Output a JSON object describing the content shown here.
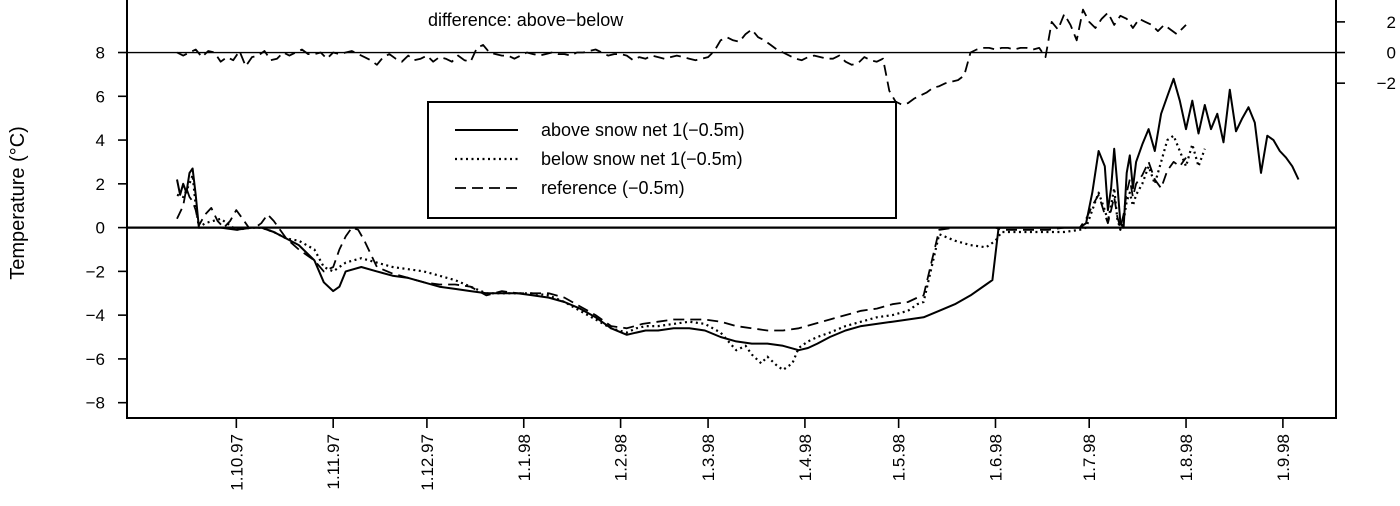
{
  "chart_data": {
    "type": "line",
    "ylabel": "Temperature (°C)",
    "ylim": [
      -8.7,
      10.4
    ],
    "y_ticks": [
      "8",
      "6",
      "4",
      "2",
      "0",
      "−2",
      "−4",
      "−6",
      "−8"
    ],
    "y_tick_values": [
      8,
      6,
      4,
      2,
      0,
      -2,
      -4,
      -6,
      -8
    ],
    "x_ticks": [
      "1.10.97",
      "1.11.97",
      "1.12.97",
      "1.1.98",
      "1.2.98",
      "1.3.98",
      "1.4.98",
      "1.5.98",
      "1.6.98",
      "1.7.98",
      "1.8.98",
      "1.9.98"
    ],
    "x_tick_days": [
      0,
      31,
      61,
      92,
      123,
      151,
      182,
      212,
      243,
      273,
      304,
      335
    ],
    "x_range_days": [
      -35,
      352
    ],
    "inset": {
      "label": "difference: above−below",
      "baseline_on_main_axis": 8,
      "scale_per_unit": 0.7,
      "right_ticks": [
        "2",
        "0",
        "−2"
      ],
      "right_tick_values": [
        2,
        0,
        -2
      ]
    },
    "legend": {
      "placement": "top-center",
      "entries": [
        "above snow net 1(−0.5m)",
        "below snow net 1(−0.5m)",
        "reference (−0.5m)"
      ]
    },
    "series": [
      {
        "name": "above snow net 1(−0.5m)",
        "style": "solid",
        "x": [
          -19,
          -18,
          -17,
          -16,
          -15,
          -14,
          -13,
          -12,
          -10,
          -5,
          0,
          5,
          8,
          12,
          16,
          20,
          25,
          28,
          31,
          33,
          35,
          40,
          45,
          50,
          55,
          60,
          65,
          70,
          75,
          80,
          85,
          90,
          95,
          100,
          105,
          110,
          115,
          120,
          125,
          128,
          131,
          135,
          140,
          145,
          150,
          155,
          160,
          165,
          170,
          175,
          180,
          183,
          186,
          190,
          195,
          200,
          205,
          210,
          215,
          220,
          225,
          230,
          235,
          240,
          242,
          243,
          244,
          250,
          255,
          260,
          265,
          270,
          272,
          274,
          276,
          278,
          279,
          280,
          281,
          282,
          283,
          284,
          285,
          286,
          287,
          288,
          290,
          292,
          294,
          296,
          298,
          300,
          302,
          304,
          306,
          308,
          310,
          312,
          314,
          316,
          318,
          320,
          322,
          324,
          326,
          328,
          330,
          332,
          334,
          336,
          338,
          340
        ],
        "y": [
          2.2,
          1.5,
          2.0,
          1.6,
          2.5,
          2.7,
          1.5,
          0.0,
          0.0,
          0.0,
          -0.1,
          0.0,
          0.0,
          -0.2,
          -0.5,
          -0.8,
          -1.5,
          -2.5,
          -2.9,
          -2.7,
          -2.0,
          -1.8,
          -2.0,
          -2.2,
          -2.3,
          -2.5,
          -2.7,
          -2.8,
          -2.9,
          -3.0,
          -3.0,
          -3.0,
          -3.1,
          -3.2,
          -3.4,
          -3.7,
          -4.1,
          -4.6,
          -4.9,
          -4.8,
          -4.7,
          -4.7,
          -4.6,
          -4.6,
          -4.7,
          -5.0,
          -5.2,
          -5.3,
          -5.3,
          -5.4,
          -5.6,
          -5.5,
          -5.3,
          -5.0,
          -4.7,
          -4.5,
          -4.4,
          -4.3,
          -4.2,
          -4.1,
          -3.8,
          -3.5,
          -3.1,
          -2.6,
          -2.4,
          -1.2,
          0.0,
          0.0,
          0.0,
          0.0,
          0.0,
          0.0,
          0.2,
          1.6,
          3.5,
          2.8,
          0.8,
          1.8,
          3.6,
          2.0,
          0.2,
          0.0,
          2.5,
          3.3,
          1.8,
          3.0,
          3.8,
          4.5,
          3.5,
          5.2,
          6.0,
          6.8,
          5.8,
          4.5,
          5.8,
          4.3,
          5.6,
          4.5,
          5.2,
          3.9,
          6.3,
          4.4,
          5.0,
          5.5,
          4.8,
          2.5,
          4.2,
          4.0,
          3.5,
          3.2,
          2.8,
          2.2
        ]
      },
      {
        "name": "below snow net 1(−0.5m)",
        "style": "dotted",
        "x": [
          -19,
          -17,
          -15,
          -14,
          -13,
          -12,
          -10,
          -5,
          0,
          5,
          8,
          12,
          16,
          20,
          25,
          28,
          31,
          33,
          35,
          40,
          45,
          50,
          55,
          60,
          65,
          70,
          75,
          80,
          85,
          90,
          95,
          100,
          105,
          110,
          115,
          120,
          125,
          128,
          131,
          135,
          140,
          145,
          150,
          155,
          160,
          163,
          165,
          168,
          170,
          173,
          175,
          178,
          180,
          183,
          186,
          190,
          195,
          200,
          205,
          210,
          215,
          218,
          220,
          225,
          230,
          235,
          240,
          243,
          245,
          250,
          255,
          260,
          265,
          270,
          272,
          274,
          276,
          278,
          279,
          280,
          281,
          282,
          283,
          284,
          285,
          286,
          287,
          288,
          290,
          292,
          294,
          296,
          298,
          300,
          302,
          304,
          306,
          308,
          310
        ],
        "y": [
          1.5,
          1.4,
          2.0,
          2.4,
          1.0,
          0.0,
          0.2,
          0.4,
          -0.1,
          0.0,
          0.0,
          -0.2,
          -0.5,
          -0.6,
          -1.0,
          -1.8,
          -2.0,
          -1.8,
          -1.6,
          -1.4,
          -1.6,
          -1.8,
          -1.9,
          -2.0,
          -2.2,
          -2.4,
          -2.7,
          -3.0,
          -3.0,
          -3.0,
          -3.0,
          -3.1,
          -3.4,
          -3.8,
          -4.2,
          -4.6,
          -4.8,
          -4.6,
          -4.5,
          -4.5,
          -4.4,
          -4.3,
          -4.4,
          -4.8,
          -5.6,
          -5.4,
          -5.8,
          -6.2,
          -5.9,
          -6.3,
          -6.5,
          -6.2,
          -5.5,
          -5.2,
          -5.0,
          -4.8,
          -4.5,
          -4.3,
          -4.1,
          -4.0,
          -3.8,
          -3.5,
          -3.4,
          -0.3,
          -0.6,
          -0.8,
          -0.9,
          -0.6,
          -0.2,
          -0.2,
          -0.2,
          -0.2,
          -0.2,
          -0.1,
          0.0,
          0.8,
          1.6,
          0.8,
          0.3,
          1.0,
          1.8,
          0.4,
          -0.1,
          0.3,
          1.2,
          1.6,
          1.0,
          1.5,
          2.0,
          2.8,
          2.0,
          3.0,
          4.0,
          4.2,
          3.5,
          2.8,
          3.8,
          2.8,
          3.6
        ]
      },
      {
        "name": "reference (−0.5m)",
        "style": "dashed",
        "x": [
          -19,
          -17,
          -16,
          -15,
          -14,
          -13,
          -12,
          -10,
          -8,
          -6,
          -4,
          -2,
          0,
          2,
          4,
          6,
          8,
          10,
          12,
          16,
          20,
          25,
          28,
          31,
          33,
          35,
          37,
          39,
          41,
          45,
          50,
          55,
          60,
          65,
          70,
          75,
          80,
          85,
          90,
          95,
          100,
          105,
          110,
          115,
          120,
          125,
          130,
          135,
          140,
          145,
          150,
          155,
          160,
          165,
          170,
          175,
          180,
          185,
          190,
          195,
          200,
          205,
          210,
          215,
          218,
          220,
          225,
          230,
          235,
          240,
          243,
          245,
          250,
          255,
          260,
          265,
          270,
          272,
          274,
          276,
          278,
          279,
          280,
          281,
          282,
          283,
          284,
          285,
          286,
          287,
          288,
          290,
          292,
          294,
          296,
          298,
          300,
          302,
          304
        ],
        "y": [
          0.4,
          1.0,
          1.8,
          1.4,
          1.2,
          0.8,
          0.1,
          0.6,
          0.9,
          0.3,
          0.0,
          0.3,
          0.8,
          0.4,
          0.0,
          0.0,
          0.2,
          0.6,
          0.3,
          -0.5,
          -1.0,
          -1.5,
          -2.0,
          -1.8,
          -1.0,
          -0.4,
          0.0,
          -0.1,
          -0.6,
          -1.8,
          -2.1,
          -2.3,
          -2.5,
          -2.6,
          -2.6,
          -2.7,
          -3.1,
          -2.9,
          -3.0,
          -3.0,
          -3.0,
          -3.2,
          -3.6,
          -4.0,
          -4.5,
          -4.6,
          -4.4,
          -4.3,
          -4.2,
          -4.2,
          -4.2,
          -4.3,
          -4.5,
          -4.6,
          -4.7,
          -4.7,
          -4.6,
          -4.4,
          -4.2,
          -4.0,
          -3.8,
          -3.7,
          -3.5,
          -3.4,
          -3.2,
          -3.1,
          -0.1,
          0.0,
          0.0,
          0.0,
          0.0,
          -0.1,
          -0.1,
          -0.1,
          -0.1,
          0.0,
          0.0,
          0.4,
          1.0,
          1.5,
          0.6,
          0.2,
          0.8,
          1.4,
          0.5,
          0.0,
          0.6,
          1.6,
          2.2,
          1.4,
          2.0,
          2.4,
          3.0,
          2.2,
          1.8,
          2.6,
          3.0,
          2.8,
          3.2
        ]
      },
      {
        "name": "difference: above−below",
        "style": "dashed",
        "axis": "inset",
        "x": [
          -19,
          -17,
          -15,
          -13,
          -11,
          -9,
          -7,
          -5,
          -3,
          -1,
          1,
          3,
          5,
          7,
          9,
          11,
          13,
          15,
          17,
          19,
          21,
          23,
          25,
          27,
          29,
          31,
          33,
          35,
          37,
          39,
          41,
          43,
          45,
          47,
          49,
          51,
          53,
          55,
          57,
          59,
          61,
          63,
          65,
          67,
          69,
          71,
          73,
          75,
          77,
          79,
          81,
          83,
          85,
          87,
          89,
          91,
          93,
          95,
          97,
          99,
          101,
          103,
          105,
          107,
          109,
          111,
          113,
          115,
          117,
          119,
          121,
          123,
          125,
          127,
          129,
          131,
          133,
          135,
          137,
          139,
          141,
          143,
          145,
          147,
          149,
          151,
          153,
          155,
          157,
          159,
          161,
          163,
          165,
          167,
          169,
          171,
          173,
          175,
          177,
          179,
          181,
          183,
          185,
          187,
          189,
          191,
          193,
          195,
          197,
          199,
          201,
          203,
          205,
          207,
          209,
          211,
          213,
          215,
          217,
          219,
          221,
          223,
          225,
          227,
          229,
          231,
          233,
          235,
          237,
          239,
          241,
          243,
          245,
          247,
          249,
          251,
          253,
          255,
          257,
          259,
          261,
          263,
          265,
          267,
          269,
          271,
          273,
          275,
          277,
          279,
          281,
          283,
          285,
          287,
          289,
          291,
          293,
          295,
          297,
          299,
          301,
          303,
          304
        ],
        "y": [
          0.0,
          -0.2,
          0.0,
          0.2,
          -0.3,
          0.1,
          0.0,
          -0.6,
          -0.3,
          -0.5,
          0.1,
          -0.9,
          -0.3,
          -0.2,
          0.1,
          -0.5,
          -0.4,
          0.0,
          -0.2,
          0.0,
          0.2,
          -0.1,
          -0.1,
          0.0,
          -0.4,
          0.0,
          -0.1,
          0.0,
          0.1,
          -0.1,
          -0.3,
          -0.5,
          -0.8,
          -0.3,
          -0.1,
          -0.4,
          -0.6,
          -0.2,
          -0.5,
          -0.4,
          -0.2,
          -0.6,
          -0.3,
          -0.4,
          -0.6,
          -0.2,
          -0.5,
          -0.6,
          0.3,
          0.5,
          0.0,
          -0.1,
          -0.2,
          -0.2,
          -0.4,
          -0.2,
          0.0,
          -0.1,
          -0.2,
          -0.1,
          0.0,
          -0.1,
          -0.1,
          -0.2,
          0.0,
          0.0,
          0.1,
          0.2,
          0.0,
          -0.2,
          -0.1,
          -0.1,
          -0.2,
          -0.5,
          -0.3,
          -0.4,
          -0.2,
          -0.3,
          -0.4,
          -0.3,
          -0.2,
          -0.3,
          -0.4,
          -0.5,
          -0.4,
          -0.3,
          0.1,
          0.8,
          1.0,
          0.8,
          0.7,
          1.2,
          1.5,
          1.0,
          0.8,
          0.5,
          0.2,
          0.0,
          -0.2,
          -0.4,
          -0.5,
          -0.3,
          -0.2,
          -0.3,
          -0.4,
          -0.4,
          -0.2,
          -0.6,
          -0.8,
          -0.7,
          -0.3,
          -0.5,
          -0.6,
          -0.4,
          -2.5,
          -3.2,
          -3.4,
          -3.3,
          -3.0,
          -2.8,
          -2.6,
          -2.3,
          -2.2,
          -2.0,
          -1.9,
          -1.8,
          -1.5,
          0.0,
          0.2,
          0.3,
          0.3,
          0.2,
          0.3,
          0.3,
          0.2,
          0.3,
          0.3,
          0.2,
          0.3,
          -0.3,
          2.0,
          1.5,
          2.5,
          1.8,
          0.8,
          2.8,
          2.0,
          1.6,
          2.2,
          2.6,
          1.8,
          2.4,
          2.2,
          1.6,
          2.2,
          2.0,
          1.8,
          1.4,
          1.8,
          1.5,
          1.2,
          1.6,
          1.8
        ]
      }
    ]
  }
}
